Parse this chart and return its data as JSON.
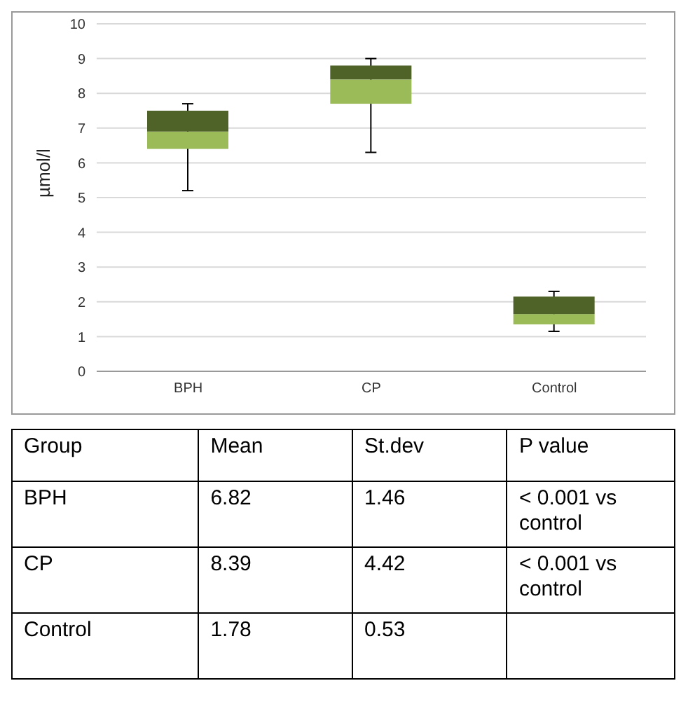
{
  "chart_data": [
    {
      "type": "box",
      "ylabel": "µmol/l",
      "categories": [
        "BPH",
        "CP",
        "Control"
      ],
      "colors": [
        "#4f6228",
        "#4f6228",
        "#4f6228"
      ],
      "series": [
        {
          "color": "#9bbb59",
          "boxes": [
            {
              "low": 5.2,
              "q1": 6.4,
              "median": 6.9,
              "q3": 7.5,
              "high": 7.7
            },
            {
              "low": 6.3,
              "q1": 7.7,
              "median": 8.4,
              "q3": 8.8,
              "high": 9.0
            },
            {
              "low": 1.15,
              "q1": 1.35,
              "median": 1.65,
              "q3": 2.15,
              "high": 2.3
            }
          ]
        }
      ],
      "ylim": [
        0,
        10
      ],
      "yticks": [
        0,
        1,
        2,
        3,
        4,
        5,
        6,
        7,
        8,
        9,
        10
      ],
      "grid": "y"
    },
    {
      "type": "other",
      "categories": [
        "Group",
        "Mean",
        "St.dev",
        "P value"
      ],
      "y_categories": [
        "BPH",
        "CP",
        "Control"
      ],
      "cell_labels": [
        [
          "6.82",
          "1.46",
          "< 0.001 vs control"
        ],
        [
          "8.39",
          "4.42",
          "< 0.001 vs control"
        ],
        [
          "1.78",
          "0.53",
          null
        ]
      ]
    }
  ]
}
